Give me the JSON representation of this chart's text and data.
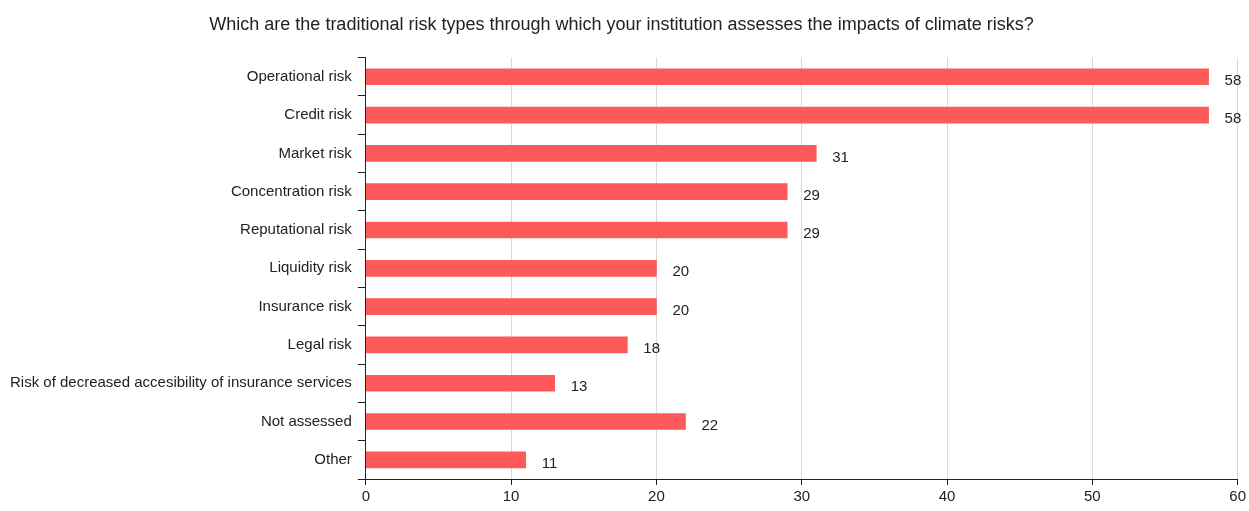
{
  "chart_data": {
    "type": "bar",
    "orientation": "horizontal",
    "title": "Which are the traditional risk types through which your institution assesses the impacts of climate risks?",
    "categories": [
      "Operational risk",
      "Credit risk",
      "Market risk",
      "Concentration risk",
      "Reputational risk",
      "Liquidity risk",
      "Insurance risk",
      "Legal risk",
      "Risk of decreased accesibility of insurance services",
      "Not assessed",
      "Other"
    ],
    "values": [
      58,
      58,
      31,
      29,
      29,
      20,
      20,
      18,
      13,
      22,
      11
    ],
    "color": "#ff5a5a",
    "xlim": [
      0,
      60
    ],
    "xticks": [
      0,
      10,
      20,
      30,
      40,
      50,
      60
    ],
    "grid": "x",
    "legend": false,
    "data_labels": true
  }
}
